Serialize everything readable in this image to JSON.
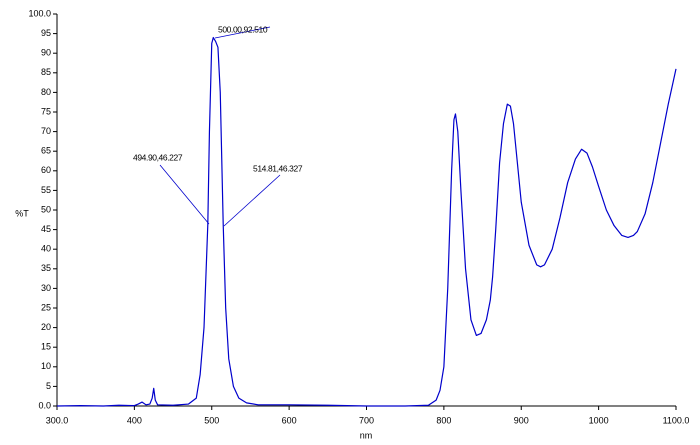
{
  "chart_data": {
    "type": "line",
    "x": [
      300,
      330,
      360,
      380,
      400,
      405,
      410,
      415,
      420,
      423,
      425,
      427,
      430,
      450,
      470,
      480,
      485,
      490,
      494.9,
      497,
      500,
      502,
      505,
      508,
      511,
      514.81,
      518,
      522,
      528,
      535,
      545,
      560,
      600,
      650,
      700,
      750,
      780,
      790,
      795,
      800,
      805,
      810,
      813,
      815,
      818,
      822,
      828,
      835,
      842,
      848,
      855,
      860,
      863,
      867,
      872,
      877,
      882,
      886,
      890,
      895,
      900,
      910,
      920,
      925,
      930,
      940,
      950,
      960,
      970,
      978,
      985,
      992,
      1000,
      1010,
      1020,
      1030,
      1038,
      1045,
      1050,
      1060,
      1070,
      1080,
      1090,
      1100
    ],
    "values": [
      0,
      0.1,
      0,
      0.2,
      0.1,
      0.5,
      1,
      0.3,
      0.5,
      2,
      4.5,
      1.5,
      0.3,
      0.2,
      0.5,
      2,
      8,
      20,
      46.227,
      70,
      92.51,
      94,
      93,
      91.5,
      80,
      46.327,
      25,
      12,
      5,
      2,
      0.8,
      0.3,
      0.3,
      0.2,
      0,
      0,
      0.2,
      1.5,
      4,
      10,
      30,
      60,
      73,
      74.5,
      70,
      55,
      35,
      22,
      18,
      18.5,
      22,
      27,
      33,
      45,
      62,
      72,
      77,
      76.5,
      72,
      62,
      52,
      41,
      36,
      35.5,
      36,
      40,
      48,
      57,
      63,
      65.5,
      64.5,
      61,
      56,
      50,
      46,
      43.5,
      43,
      43.5,
      44.5,
      49,
      57,
      67,
      77,
      86
    ],
    "color": "#0000cc",
    "xlim": [
      300,
      1100
    ],
    "xticks": [
      {
        "value": 300,
        "label": "300.0"
      },
      400,
      500,
      600,
      700,
      800,
      900,
      1000,
      {
        "value": 1100,
        "label": "1100.0"
      }
    ],
    "ylim": [
      0,
      100
    ],
    "yticks": [
      {
        "value": 0,
        "label": "0.0"
      },
      5,
      10,
      15,
      20,
      25,
      30,
      35,
      40,
      45,
      50,
      55,
      60,
      65,
      70,
      75,
      80,
      85,
      90,
      95,
      {
        "value": 100,
        "label": "100.0"
      }
    ],
    "xlabel": "nm",
    "ylabel": "%T",
    "annotations": [
      "500.00,92.510",
      "494.90,46.227",
      "514.81,46.327"
    ]
  }
}
